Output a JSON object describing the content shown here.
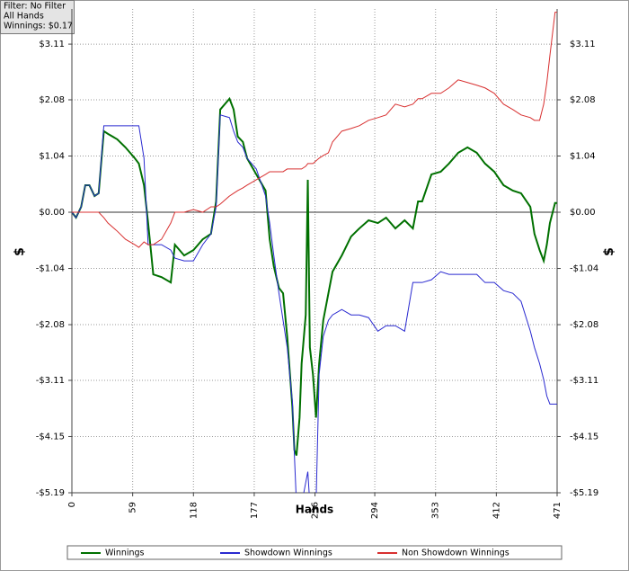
{
  "chart_data": {
    "type": "line",
    "annotations": [
      "Filter: No Filter",
      "All Hands",
      "Winnings: $0.17"
    ],
    "xlabel": "Hands",
    "ylabel": "$",
    "y2label": "$",
    "grid": true,
    "legend": "bottom",
    "xlim": [
      0,
      471
    ],
    "xticks": [
      0,
      59,
      118,
      177,
      236,
      294,
      353,
      412,
      471
    ],
    "ylim": [
      -5.19,
      3.76
    ],
    "yticks": [
      {
        "value": -5.19,
        "label": "-$5.19"
      },
      {
        "value": -4.15,
        "label": "-$4.15"
      },
      {
        "value": -3.11,
        "label": "-$3.11"
      },
      {
        "value": -2.08,
        "label": "-$2.08"
      },
      {
        "value": -1.04,
        "label": "-$1.04"
      },
      {
        "value": 0,
        "label": "$0.00"
      },
      {
        "value": 1.04,
        "label": "$1.04"
      },
      {
        "value": 2.08,
        "label": "$2.08"
      },
      {
        "value": 3.11,
        "label": "$3.11"
      }
    ],
    "y2lim": [
      -5.19,
      3.76
    ],
    "y2ticks": [
      {
        "value": -5.19,
        "label": "-$5.19"
      },
      {
        "value": -4.15,
        "label": "-$4.15"
      },
      {
        "value": -3.11,
        "label": "-$3.11"
      },
      {
        "value": -2.08,
        "label": "-$2.08"
      },
      {
        "value": -1.04,
        "label": "-$1.04"
      },
      {
        "value": 0,
        "label": "$0.00"
      },
      {
        "value": 1.04,
        "label": "$1.04"
      },
      {
        "value": 2.08,
        "label": "$2.08"
      },
      {
        "value": 3.11,
        "label": "$3.11"
      }
    ],
    "x": [
      0,
      4,
      9,
      13,
      17,
      22,
      26,
      31,
      35,
      44,
      52,
      61,
      65,
      70,
      74,
      79,
      87,
      96,
      100,
      109,
      118,
      127,
      135,
      140,
      144,
      153,
      157,
      161,
      166,
      170,
      179,
      188,
      192,
      196,
      201,
      205,
      209,
      214,
      216,
      218,
      221,
      223,
      227,
      229,
      231,
      234,
      237,
      240,
      244,
      249,
      253,
      262,
      271,
      279,
      288,
      297,
      305,
      314,
      323,
      331,
      336,
      340,
      349,
      358,
      366,
      375,
      384,
      393,
      401,
      410,
      419,
      428,
      436,
      445,
      449,
      454,
      458,
      461,
      464,
      469,
      471
    ],
    "series": [
      {
        "name": "Winnings",
        "color": "#007000",
        "values": [
          0,
          -0.1,
          0.1,
          0.5,
          0.5,
          0.3,
          0.35,
          1.5,
          1.45,
          1.35,
          1.2,
          1.0,
          0.9,
          0.5,
          -0.2,
          -1.15,
          -1.2,
          -1.3,
          -0.6,
          -0.8,
          -0.7,
          -0.5,
          -0.4,
          0.2,
          1.9,
          2.1,
          1.9,
          1.4,
          1.3,
          1.0,
          0.7,
          0.4,
          -0.5,
          -1.0,
          -1.4,
          -1.5,
          -2.3,
          -3.6,
          -4.4,
          -4.5,
          -3.8,
          -2.8,
          -1.9,
          0.6,
          -2.5,
          -3.0,
          -3.8,
          -2.8,
          -2.0,
          -1.5,
          -1.1,
          -0.8,
          -0.45,
          -0.3,
          -0.15,
          -0.2,
          -0.1,
          -0.3,
          -0.15,
          -0.3,
          0.2,
          0.2,
          0.7,
          0.75,
          0.9,
          1.1,
          1.2,
          1.1,
          0.9,
          0.75,
          0.5,
          0.4,
          0.35,
          0.1,
          -0.4,
          -0.7,
          -0.9,
          -0.6,
          -0.2,
          0.17,
          0.17
        ]
      },
      {
        "name": "Showdown Winnings",
        "color": "#2a2ad0",
        "values": [
          0,
          -0.1,
          0.1,
          0.5,
          0.5,
          0.3,
          0.35,
          1.6,
          1.6,
          1.6,
          1.6,
          1.6,
          1.6,
          1.0,
          -0.6,
          -0.6,
          -0.6,
          -0.7,
          -0.85,
          -0.9,
          -0.9,
          -0.6,
          -0.4,
          0.1,
          1.8,
          1.75,
          1.5,
          1.3,
          1.2,
          1.0,
          0.8,
          0.3,
          -0.2,
          -0.8,
          -1.5,
          -2.0,
          -2.5,
          -3.5,
          -4.5,
          -5.4,
          -5.4,
          -5.4,
          -5.0,
          -4.8,
          -5.4,
          -5.4,
          -5.4,
          -3.0,
          -2.3,
          -2.0,
          -1.9,
          -1.8,
          -1.9,
          -1.9,
          -1.95,
          -2.2,
          -2.1,
          -2.1,
          -2.2,
          -1.3,
          -1.3,
          -1.3,
          -1.25,
          -1.1,
          -1.15,
          -1.15,
          -1.15,
          -1.15,
          -1.3,
          -1.3,
          -1.45,
          -1.5,
          -1.65,
          -2.2,
          -2.5,
          -2.8,
          -3.1,
          -3.4,
          -3.55,
          -3.55,
          -3.55
        ]
      },
      {
        "name": "Non Showdown Winnings",
        "color": "#d83030",
        "values": [
          0,
          0,
          0,
          0,
          0,
          0,
          0,
          -0.1,
          -0.2,
          -0.35,
          -0.5,
          -0.6,
          -0.65,
          -0.55,
          -0.6,
          -0.6,
          -0.5,
          -0.2,
          0.0,
          0.0,
          0.05,
          0,
          0.1,
          0.1,
          0.15,
          0.3,
          0.35,
          0.4,
          0.45,
          0.5,
          0.6,
          0.7,
          0.75,
          0.75,
          0.75,
          0.75,
          0.8,
          0.8,
          0.8,
          0.8,
          0.8,
          0.8,
          0.85,
          0.9,
          0.9,
          0.9,
          0.95,
          1.0,
          1.05,
          1.1,
          1.3,
          1.5,
          1.55,
          1.6,
          1.7,
          1.75,
          1.8,
          2.0,
          1.95,
          2.0,
          2.1,
          2.1,
          2.2,
          2.2,
          2.3,
          2.45,
          2.4,
          2.35,
          2.3,
          2.2,
          2.0,
          1.9,
          1.8,
          1.75,
          1.7,
          1.7,
          2.0,
          2.4,
          2.9,
          3.7,
          3.7
        ]
      }
    ]
  }
}
